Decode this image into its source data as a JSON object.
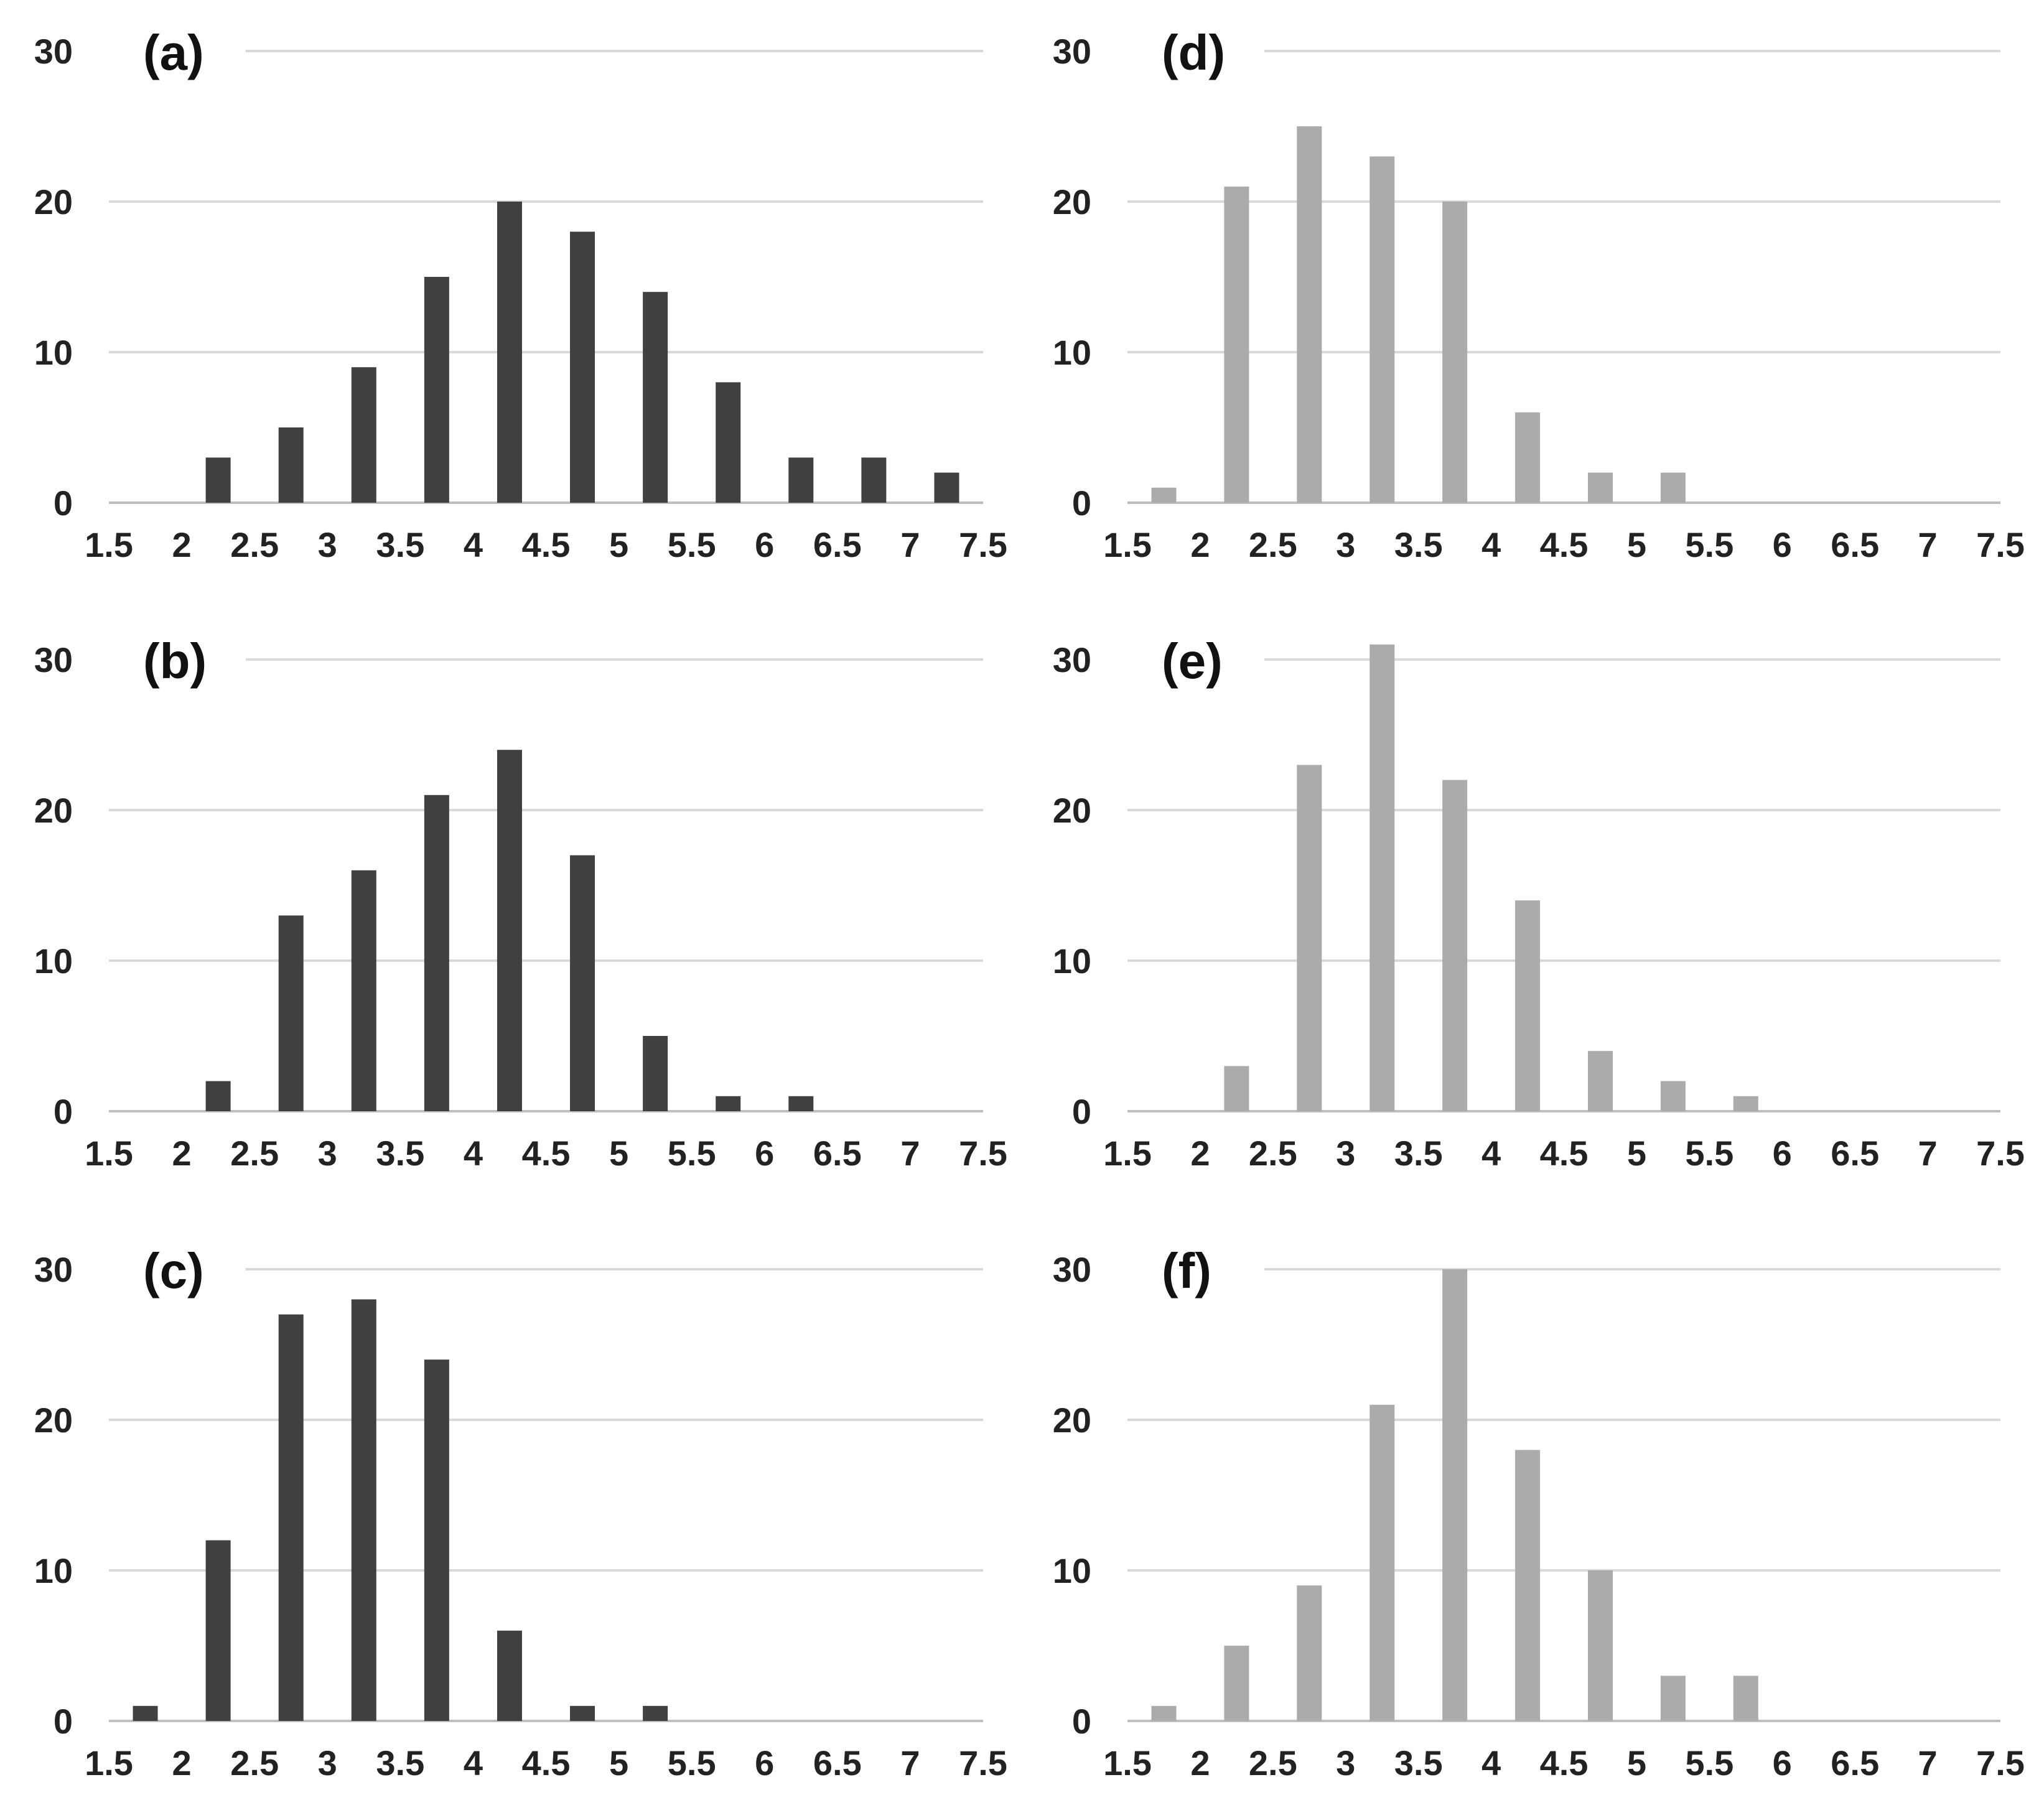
{
  "chart_data": [
    {
      "type": "bar",
      "panel": "(a)",
      "color": "#404040",
      "x": [
        1.75,
        2.25,
        2.75,
        3.25,
        3.75,
        4.25,
        4.75,
        5.25,
        5.75,
        6.25,
        6.75,
        7.25
      ],
      "values": [
        0,
        3,
        5,
        9,
        15,
        20,
        18,
        14,
        8,
        3,
        3,
        2
      ],
      "xticks": [
        "1.5",
        "2",
        "2.5",
        "3",
        "3.5",
        "4",
        "4.5",
        "5",
        "5.5",
        "6",
        "6.5",
        "7",
        "7.5"
      ],
      "yticks": [
        "0",
        "10",
        "20",
        "30"
      ],
      "xlim": [
        1.5,
        7.5
      ],
      "ylim": [
        0,
        30
      ],
      "grid": true,
      "title": "",
      "xlabel": "",
      "ylabel": ""
    },
    {
      "type": "bar",
      "panel": "(b)",
      "color": "#404040",
      "x": [
        1.75,
        2.25,
        2.75,
        3.25,
        3.75,
        4.25,
        4.75,
        5.25,
        5.75,
        6.25,
        6.75,
        7.25
      ],
      "values": [
        0,
        2,
        13,
        16,
        21,
        24,
        17,
        5,
        1,
        1,
        0,
        0
      ],
      "xticks": [
        "1.5",
        "2",
        "2.5",
        "3",
        "3.5",
        "4",
        "4.5",
        "5",
        "5.5",
        "6",
        "6.5",
        "7",
        "7.5"
      ],
      "yticks": [
        "0",
        "10",
        "20",
        "30"
      ],
      "xlim": [
        1.5,
        7.5
      ],
      "ylim": [
        0,
        30
      ],
      "grid": true,
      "title": "",
      "xlabel": "",
      "ylabel": ""
    },
    {
      "type": "bar",
      "panel": "(c)",
      "color": "#404040",
      "x": [
        1.75,
        2.25,
        2.75,
        3.25,
        3.75,
        4.25,
        4.75,
        5.25,
        5.75,
        6.25,
        6.75,
        7.25
      ],
      "values": [
        1,
        12,
        27,
        28,
        24,
        6,
        1,
        1,
        0,
        0,
        0,
        0
      ],
      "xticks": [
        "1.5",
        "2",
        "2.5",
        "3",
        "3.5",
        "4",
        "4.5",
        "5",
        "5.5",
        "6",
        "6.5",
        "7",
        "7.5"
      ],
      "yticks": [
        "0",
        "10",
        "20",
        "30"
      ],
      "xlim": [
        1.5,
        7.5
      ],
      "ylim": [
        0,
        30
      ],
      "grid": true,
      "title": "",
      "xlabel": "",
      "ylabel": ""
    },
    {
      "type": "bar",
      "panel": "(d)",
      "color": "#ADAAAA",
      "x": [
        1.75,
        2.25,
        2.75,
        3.25,
        3.75,
        4.25,
        4.75,
        5.25,
        5.75,
        6.25,
        6.75,
        7.25
      ],
      "values": [
        1,
        21,
        25,
        23,
        20,
        6,
        2,
        2,
        0,
        0,
        0,
        0
      ],
      "xticks": [
        "1.5",
        "2",
        "2.5",
        "3",
        "3.5",
        "4",
        "4.5",
        "5",
        "5.5",
        "6",
        "6.5",
        "7",
        "7.5"
      ],
      "yticks": [
        "0",
        "10",
        "20",
        "30"
      ],
      "xlim": [
        1.5,
        7.5
      ],
      "ylim": [
        0,
        30
      ],
      "grid": true,
      "title": "",
      "xlabel": "",
      "ylabel": ""
    },
    {
      "type": "bar",
      "panel": "(e)",
      "color": "#ADAAAA",
      "x": [
        1.75,
        2.25,
        2.75,
        3.25,
        3.75,
        4.25,
        4.75,
        5.25,
        5.75,
        6.25,
        6.75,
        7.25
      ],
      "values": [
        0,
        3,
        23,
        31,
        22,
        14,
        4,
        2,
        1,
        0,
        0,
        0
      ],
      "xticks": [
        "1.5",
        "2",
        "2.5",
        "3",
        "3.5",
        "4",
        "4.5",
        "5",
        "5.5",
        "6",
        "6.5",
        "7",
        "7.5"
      ],
      "yticks": [
        "0",
        "10",
        "20",
        "30"
      ],
      "xlim": [
        1.5,
        7.5
      ],
      "ylim": [
        0,
        30
      ],
      "grid": true,
      "title": "",
      "xlabel": "",
      "ylabel": ""
    },
    {
      "type": "bar",
      "panel": "(f)",
      "color": "#ADAAAA",
      "x": [
        1.75,
        2.25,
        2.75,
        3.25,
        3.75,
        4.25,
        4.75,
        5.25,
        5.75,
        6.25,
        6.75,
        7.25
      ],
      "values": [
        1,
        5,
        9,
        21,
        30,
        18,
        10,
        3,
        3,
        0,
        0,
        0
      ],
      "xticks": [
        "1.5",
        "2",
        "2.5",
        "3",
        "3.5",
        "4",
        "4.5",
        "5",
        "5.5",
        "6",
        "6.5",
        "7",
        "7.5"
      ],
      "yticks": [
        "0",
        "10",
        "20",
        "30"
      ],
      "xlim": [
        1.5,
        7.5
      ],
      "ylim": [
        0,
        30
      ],
      "grid": true,
      "title": "",
      "xlabel": "",
      "ylabel": ""
    }
  ],
  "colors": {
    "dark_bar": "#404040",
    "light_bar": "#ADAAAA",
    "gridline": "#D9D9D9",
    "axis": "#BFBFBF"
  }
}
